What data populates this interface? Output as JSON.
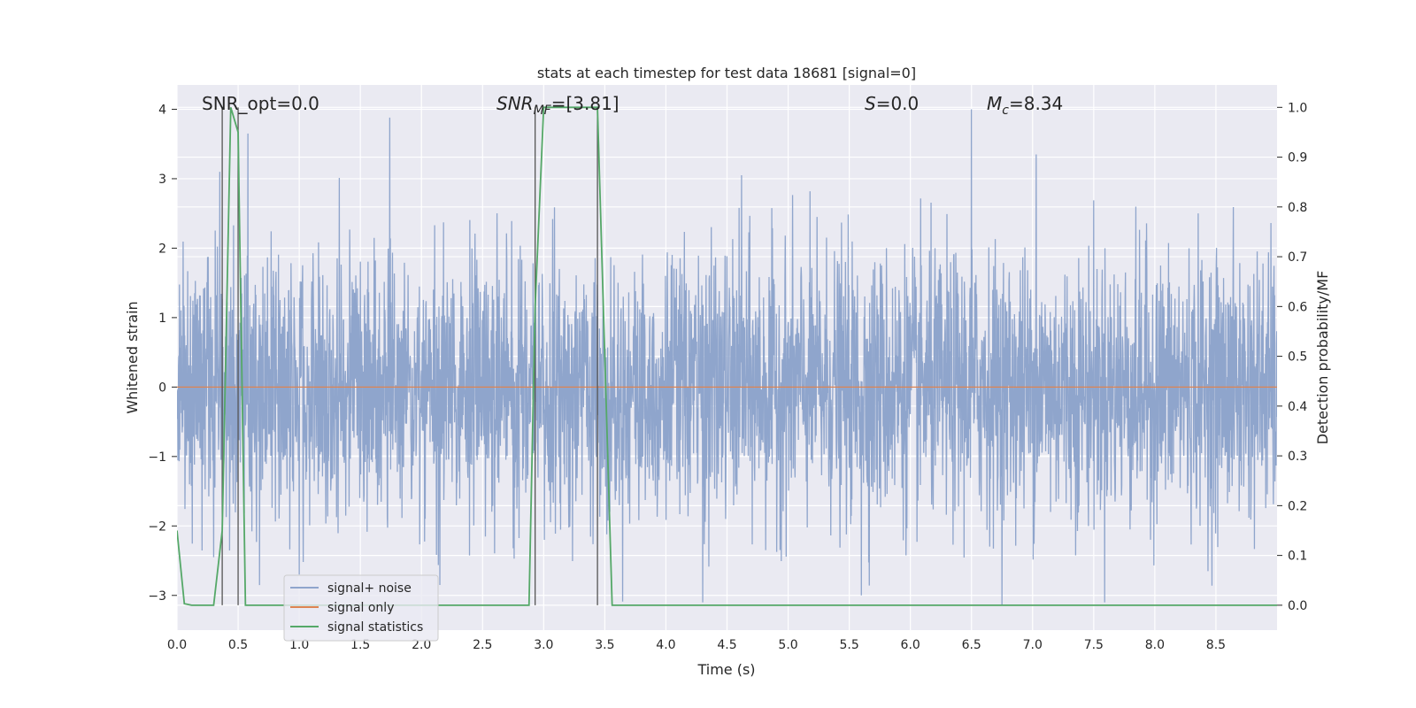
{
  "chart_data": {
    "type": "line",
    "title": "stats at each timestep for test data 18681 [signal=0]",
    "xlabel": "Time (s)",
    "ylabel": "Whitened strain",
    "ylabel_right": "Detection probability/MF",
    "xlim": [
      0.0,
      9.0
    ],
    "ylim": [
      -3.5,
      4.35
    ],
    "ylim_right": [
      -0.05,
      1.045
    ],
    "xticks": [
      0.0,
      0.5,
      1.0,
      1.5,
      2.0,
      2.5,
      3.0,
      3.5,
      4.0,
      4.5,
      5.0,
      5.5,
      6.0,
      6.5,
      7.0,
      7.5,
      8.0,
      8.5
    ],
    "xtick_labels": [
      "0.0",
      "0.5",
      "1.0",
      "1.5",
      "2.0",
      "2.5",
      "3.0",
      "3.5",
      "4.0",
      "4.5",
      "5.0",
      "5.5",
      "6.0",
      "6.5",
      "7.0",
      "7.5",
      "8.0",
      "8.5"
    ],
    "yticks": [
      4,
      3,
      2,
      1,
      0,
      -1,
      -2,
      -3
    ],
    "ytick_labels": [
      "4",
      "3",
      "2",
      "1",
      "0",
      "−1",
      "−2",
      "−3"
    ],
    "yticks_right": [
      1.0,
      0.9,
      0.8,
      0.7,
      0.6,
      0.5,
      0.4,
      0.3,
      0.2,
      0.1,
      0.0
    ],
    "ytick_labels_right": [
      "1.0",
      "0.9",
      "0.8",
      "0.7",
      "0.6",
      "0.5",
      "0.4",
      "0.3",
      "0.2",
      "0.1",
      "0.0"
    ],
    "grid": true,
    "legend_position": "lower-left",
    "annotations": {
      "snr_opt": "SNR_opt=0.0",
      "snr_mf_symbol": "SNR",
      "snr_mf_sub": "MF",
      "snr_mf_value": "=[3.81]",
      "s_symbol": "S",
      "s_value": "=0.0",
      "mc_symbol": "M",
      "mc_sub": "c",
      "mc_value": "=8.34"
    },
    "vlines_x": [
      0.37,
      0.5,
      2.93,
      3.44
    ],
    "series": [
      {
        "name": "signal+ noise",
        "color": "#8fa5cc",
        "kind": "noise",
        "sigma": 0.95,
        "n_samples": 3600,
        "peaks": [
          [
            0.35,
            3.1
          ],
          [
            0.58,
            3.65
          ],
          [
            1.74,
            3.88
          ],
          [
            6.5,
            4.0
          ],
          [
            7.03,
            3.35
          ],
          [
            4.62,
            3.05
          ],
          [
            0.3,
            -2.45
          ],
          [
            4.3,
            -3.1
          ],
          [
            6.75,
            -3.15
          ],
          [
            5.6,
            -3.0
          ],
          [
            2.15,
            -2.85
          ],
          [
            1.0,
            -2.7
          ]
        ]
      },
      {
        "name": "signal only",
        "color": "#dd8452",
        "kind": "flat",
        "x": [
          0.0,
          9.0
        ],
        "y": [
          0.0,
          0.0
        ]
      },
      {
        "name": "signal statistics",
        "color": "#55a868",
        "kind": "right-axis",
        "x": [
          0.0,
          0.06,
          0.12,
          0.3,
          0.37,
          0.44,
          0.5,
          0.56,
          2.88,
          2.93,
          3.0,
          3.44,
          3.56,
          9.0
        ],
        "y": [
          0.15,
          0.003,
          0.0,
          0.0,
          0.15,
          1.0,
          0.95,
          0.0,
          0.0,
          0.6,
          1.0,
          1.0,
          0.0,
          0.0
        ]
      }
    ]
  }
}
